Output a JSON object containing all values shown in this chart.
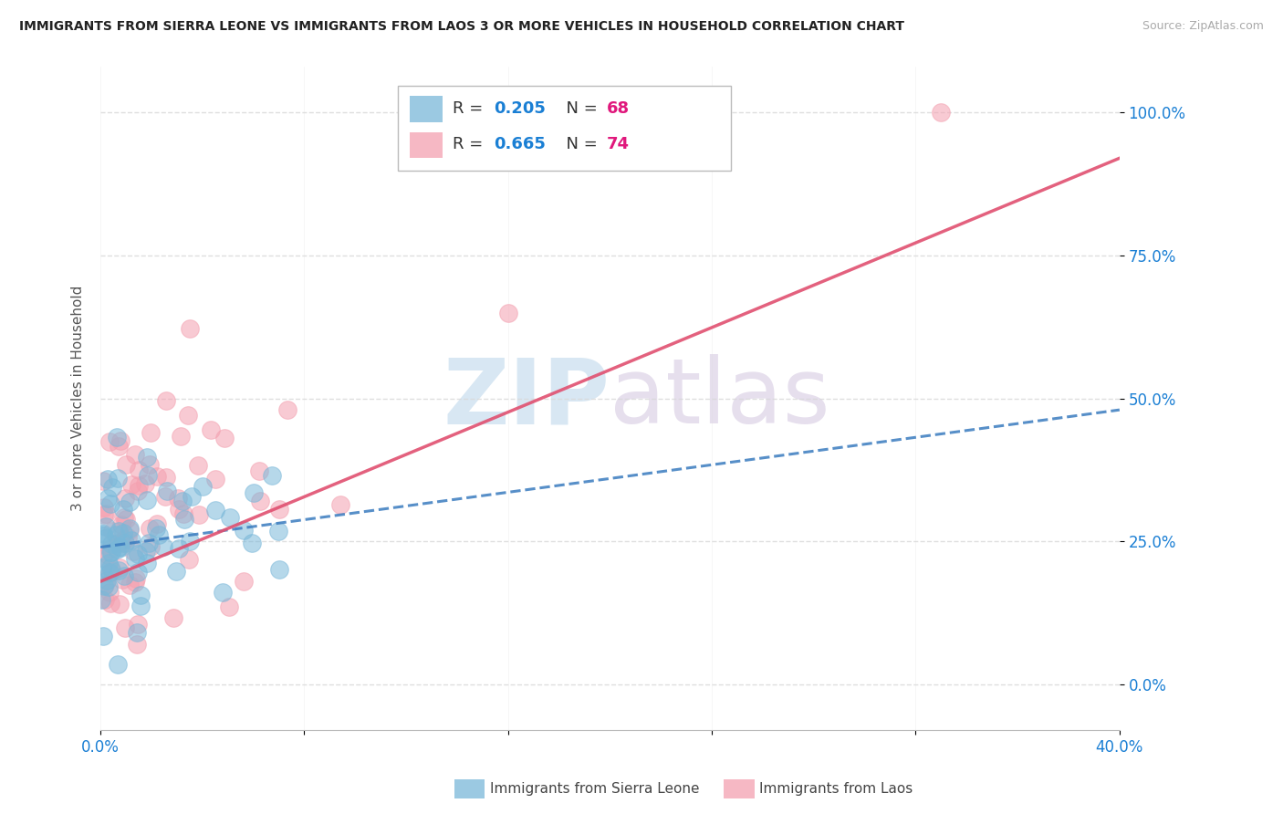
{
  "title": "IMMIGRANTS FROM SIERRA LEONE VS IMMIGRANTS FROM LAOS 3 OR MORE VEHICLES IN HOUSEHOLD CORRELATION CHART",
  "source": "Source: ZipAtlas.com",
  "ylabel": "3 or more Vehicles in Household",
  "ytick_labels": [
    "0.0%",
    "25.0%",
    "50.0%",
    "75.0%",
    "100.0%"
  ],
  "ytick_vals": [
    0,
    25,
    50,
    75,
    100
  ],
  "xlim": [
    0,
    40
  ],
  "ylim": [
    -8,
    108
  ],
  "sierra_leone_R": 0.205,
  "sierra_leone_N": 68,
  "laos_R": 0.665,
  "laos_N": 74,
  "sierra_leone_color": "#7ab8d9",
  "laos_color": "#f4a0b0",
  "sierra_leone_line_color": "#3a7bbf",
  "laos_line_color": "#e05070",
  "background_color": "#ffffff",
  "watermark_color": "#c8dff0",
  "watermark_color2": "#d0c0d8",
  "legend_R_color": "#1a7fd4",
  "legend_N_color": "#e0187c",
  "grid_color": "#d8d8d8",
  "tick_color": "#1a7fd4",
  "ylabel_color": "#555555",
  "title_color": "#222222",
  "source_color": "#aaaaaa"
}
